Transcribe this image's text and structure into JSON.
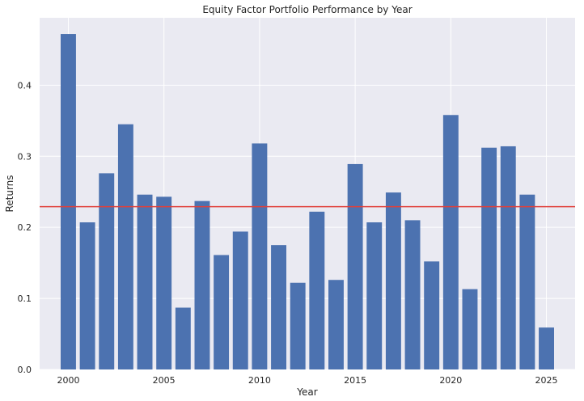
{
  "chart_data": {
    "type": "bar",
    "title": "Equity Factor Portfolio Performance by Year",
    "xlabel": "Year",
    "ylabel": "Returns",
    "x": [
      2000,
      2001,
      2002,
      2003,
      2004,
      2005,
      2006,
      2007,
      2008,
      2009,
      2010,
      2011,
      2012,
      2013,
      2014,
      2015,
      2016,
      2017,
      2018,
      2019,
      2020,
      2021,
      2022,
      2023,
      2024,
      2025
    ],
    "values": [
      0.472,
      0.207,
      0.276,
      0.345,
      0.246,
      0.243,
      0.087,
      0.237,
      0.161,
      0.194,
      0.318,
      0.175,
      0.122,
      0.222,
      0.126,
      0.289,
      0.207,
      0.249,
      0.21,
      0.152,
      0.358,
      0.113,
      0.312,
      0.314,
      0.246,
      0.059
    ],
    "xlim": [
      1998.5,
      2026.5
    ],
    "ylim": [
      0,
      0.4948
    ],
    "xticks": [
      2000,
      2005,
      2010,
      2015,
      2020,
      2025
    ],
    "yticks": [
      0.0,
      0.1,
      0.2,
      0.3,
      0.4
    ],
    "ytick_labels": [
      "0.0",
      "0.1",
      "0.2",
      "0.3",
      "0.4"
    ],
    "mean_line": 0.229,
    "grid": true,
    "colors": {
      "bar": "#4c72b0",
      "mean_line": "#e0403a",
      "plot_bg": "#eaeaf2",
      "grid": "#ffffff"
    }
  }
}
